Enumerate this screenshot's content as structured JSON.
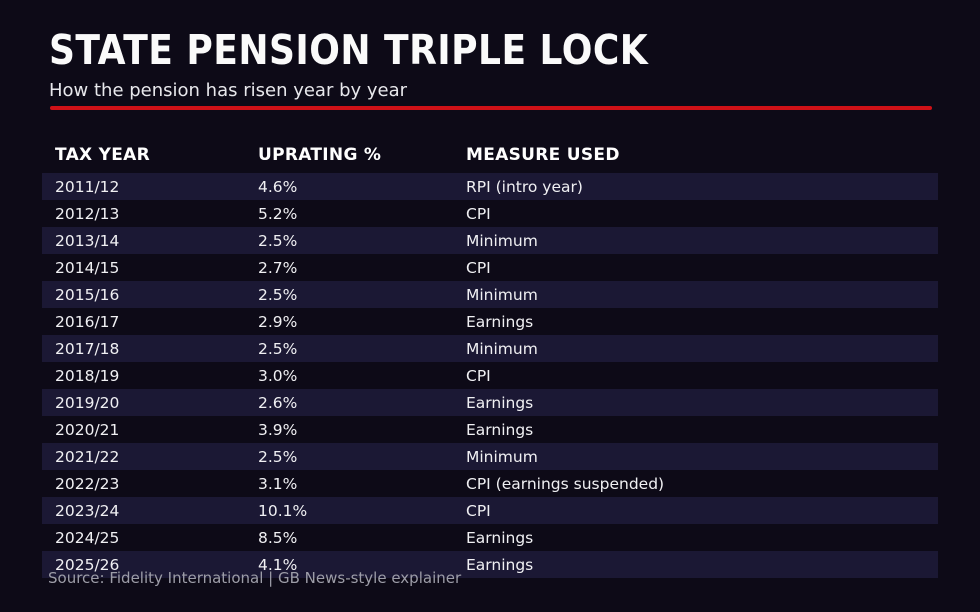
{
  "page": {
    "title": "STATE PENSION TRIPLE LOCK",
    "subtitle": "How the pension has risen year by year",
    "source": "Source: Fidelity International | GB News-style explainer"
  },
  "colors": {
    "background": "#0d0a17",
    "row_stripe": "#1b1834",
    "accent_red": "#cf1117",
    "text": "#f2f2f4",
    "muted_text": "#9d9da8"
  },
  "chart_data": {
    "type": "table",
    "title": "STATE PENSION TRIPLE LOCK",
    "subtitle": "How the pension has risen year by year",
    "columns": [
      "TAX YEAR",
      "UPRATING %",
      "MEASURE USED"
    ],
    "rows": [
      {
        "year": "2011/12",
        "uprating": "4.6%",
        "measure": "RPI (intro year)"
      },
      {
        "year": "2012/13",
        "uprating": "5.2%",
        "measure": "CPI"
      },
      {
        "year": "2013/14",
        "uprating": "2.5%",
        "measure": "Minimum"
      },
      {
        "year": "2014/15",
        "uprating": "2.7%",
        "measure": "CPI"
      },
      {
        "year": "2015/16",
        "uprating": "2.5%",
        "measure": "Minimum"
      },
      {
        "year": "2016/17",
        "uprating": "2.9%",
        "measure": "Earnings"
      },
      {
        "year": "2017/18",
        "uprating": "2.5%",
        "measure": "Minimum"
      },
      {
        "year": "2018/19",
        "uprating": "3.0%",
        "measure": "CPI"
      },
      {
        "year": "2019/20",
        "uprating": "2.6%",
        "measure": "Earnings"
      },
      {
        "year": "2020/21",
        "uprating": "3.9%",
        "measure": "Earnings"
      },
      {
        "year": "2021/22",
        "uprating": "2.5%",
        "measure": "Minimum"
      },
      {
        "year": "2022/23",
        "uprating": "3.1%",
        "measure": "CPI (earnings suspended)"
      },
      {
        "year": "2023/24",
        "uprating": "10.1%",
        "measure": "CPI"
      },
      {
        "year": "2024/25",
        "uprating": "8.5%",
        "measure": "Earnings"
      },
      {
        "year": "2025/26",
        "uprating": "4.1%",
        "measure": "Earnings"
      }
    ],
    "legend": null,
    "grid": false,
    "layout_hints": "zebra-striped rows, first data row striped, dark indigo theme"
  }
}
